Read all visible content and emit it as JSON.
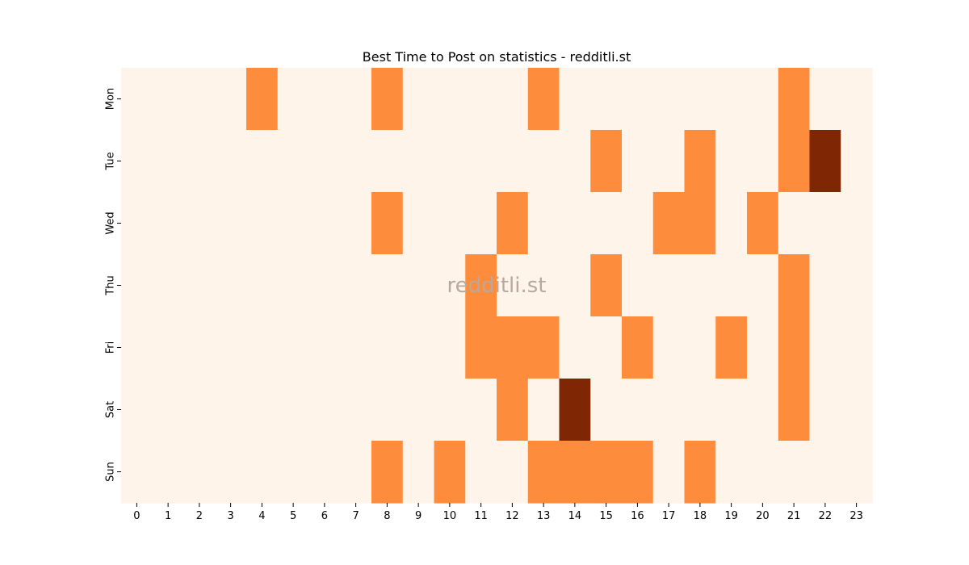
{
  "chart_data": {
    "type": "heatmap",
    "title": "Best Time to Post on statistics - redditli.st",
    "watermark": "redditli.st",
    "x_categories": [
      "0",
      "1",
      "2",
      "3",
      "4",
      "5",
      "6",
      "7",
      "8",
      "9",
      "10",
      "11",
      "12",
      "13",
      "14",
      "15",
      "16",
      "17",
      "18",
      "19",
      "20",
      "21",
      "22",
      "23"
    ],
    "y_categories": [
      "Mon",
      "Tue",
      "Wed",
      "Thu",
      "Fri",
      "Sat",
      "Sun"
    ],
    "values": [
      [
        0,
        0,
        0,
        0,
        1,
        0,
        0,
        0,
        1,
        0,
        0,
        0,
        0,
        1,
        0,
        0,
        0,
        0,
        0,
        0,
        0,
        1,
        0,
        0
      ],
      [
        0,
        0,
        0,
        0,
        0,
        0,
        0,
        0,
        0,
        0,
        0,
        0,
        0,
        0,
        0,
        1,
        0,
        0,
        1,
        0,
        0,
        1,
        2,
        0
      ],
      [
        0,
        0,
        0,
        0,
        0,
        0,
        0,
        0,
        1,
        0,
        0,
        0,
        1,
        0,
        0,
        0,
        0,
        1,
        1,
        0,
        1,
        0,
        0,
        0
      ],
      [
        0,
        0,
        0,
        0,
        0,
        0,
        0,
        0,
        0,
        0,
        0,
        1,
        0,
        0,
        0,
        1,
        0,
        0,
        0,
        0,
        0,
        1,
        0,
        0
      ],
      [
        0,
        0,
        0,
        0,
        0,
        0,
        0,
        0,
        0,
        0,
        0,
        1,
        1,
        1,
        0,
        0,
        1,
        0,
        0,
        1,
        0,
        1,
        0,
        0
      ],
      [
        0,
        0,
        0,
        0,
        0,
        0,
        0,
        0,
        0,
        0,
        0,
        0,
        1,
        0,
        2,
        0,
        0,
        0,
        0,
        0,
        0,
        1,
        0,
        0
      ],
      [
        0,
        0,
        0,
        0,
        0,
        0,
        0,
        0,
        1,
        0,
        1,
        0,
        0,
        1,
        1,
        1,
        1,
        0,
        1,
        0,
        0,
        0,
        0,
        0
      ]
    ],
    "color_scale": {
      "0": "#fff4e9",
      "1": "#fd8d3c",
      "2": "#7f2704"
    },
    "colormap": "Oranges",
    "grid": false,
    "legend": "none"
  }
}
